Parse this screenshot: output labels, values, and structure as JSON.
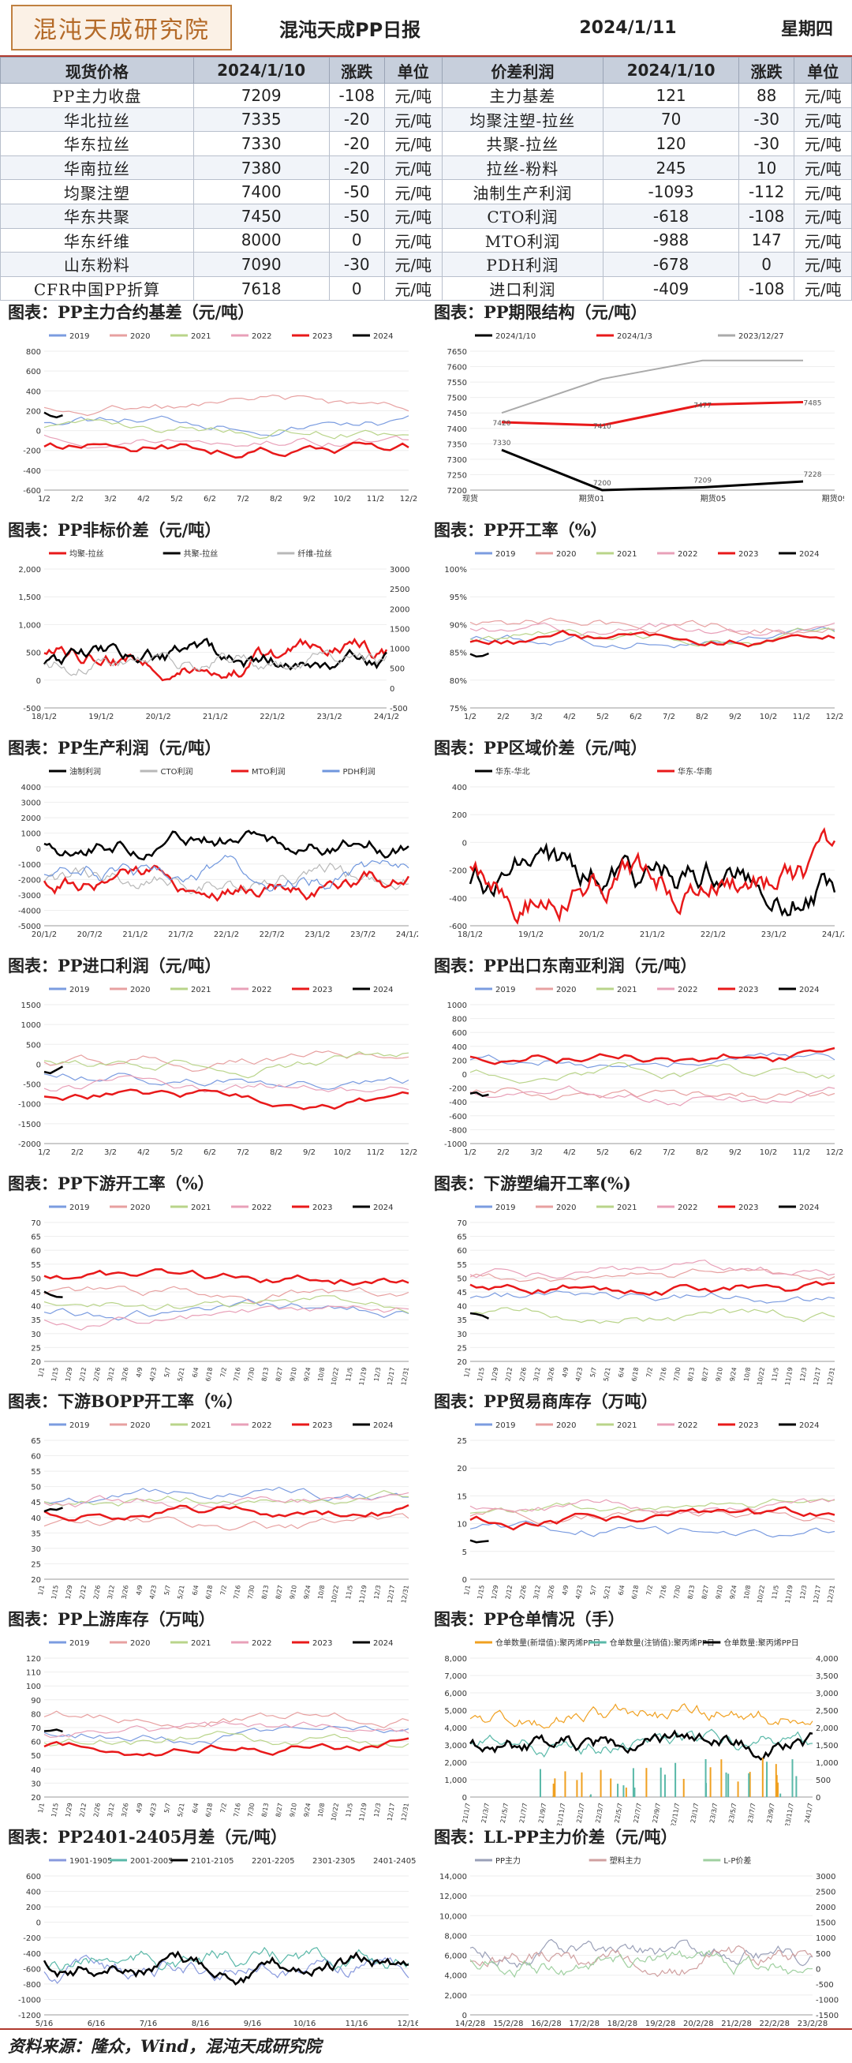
{
  "header": {
    "logo_text": "混沌天成研究院",
    "title": "混沌天成PP日报",
    "date": "2024/1/11",
    "weekday": "星期四"
  },
  "table": {
    "headers": [
      "现货价格",
      "2024/1/10",
      "涨跌",
      "单位",
      "价差利润",
      "2024/1/10",
      "涨跌",
      "单位"
    ],
    "rows": [
      [
        "PP主力收盘",
        "7209",
        "-108",
        "元/吨",
        "主力基差",
        "121",
        "88",
        "元/吨"
      ],
      [
        "华北拉丝",
        "7335",
        "-20",
        "元/吨",
        "均聚注塑-拉丝",
        "70",
        "-30",
        "元/吨"
      ],
      [
        "华东拉丝",
        "7330",
        "-20",
        "元/吨",
        "共聚-拉丝",
        "120",
        "-30",
        "元/吨"
      ],
      [
        "华南拉丝",
        "7380",
        "-20",
        "元/吨",
        "拉丝-粉料",
        "245",
        "10",
        "元/吨"
      ],
      [
        "均聚注塑",
        "7400",
        "-50",
        "元/吨",
        "油制生产利润",
        "-1093",
        "-112",
        "元/吨"
      ],
      [
        "华东共聚",
        "7450",
        "-50",
        "元/吨",
        "CTO利润",
        "-618",
        "-108",
        "元/吨"
      ],
      [
        "华东纤维",
        "8000",
        "0",
        "元/吨",
        "MTO利润",
        "-988",
        "147",
        "元/吨"
      ],
      [
        "山东粉料",
        "7090",
        "-30",
        "元/吨",
        "PDH利润",
        "-678",
        "0",
        "元/吨"
      ],
      [
        "CFR中国PP折算",
        "7618",
        "0",
        "元/吨",
        "进口利润",
        "-409",
        "-108",
        "元/吨"
      ]
    ]
  },
  "colors": {
    "y2019": "#7b9ce0",
    "y2020": "#e7a0a0",
    "y2021": "#b9d48a",
    "y2022": "#e8a0b8",
    "y2023": "#e8191a",
    "y2024": "#000000",
    "cto": "#b8b8b8",
    "pdh": "#6f96dd",
    "teal": "#59b8a8",
    "orange": "#f0a020"
  },
  "charts": [
    {
      "title": "图表：PP主力合约基差（元/吨）",
      "legend": [
        "2019",
        "2020",
        "2021",
        "2022",
        "2023",
        "2024"
      ],
      "yticks": [
        "800",
        "600",
        "400",
        "200",
        "0",
        "-200",
        "-400",
        "-600"
      ],
      "xticks": [
        "1/2",
        "2/2",
        "3/2",
        "4/2",
        "5/2",
        "6/2",
        "7/2",
        "8/2",
        "9/2",
        "10/2",
        "11/2",
        "12/2"
      ]
    },
    {
      "title": "图表：PP期限结构（元/吨）",
      "legend": [
        "2024/1/10",
        "2024/1/3",
        "2023/12/27"
      ],
      "yticks": [
        "7650",
        "7600",
        "7550",
        "7500",
        "7450",
        "7400",
        "7350",
        "7300",
        "7250",
        "7200"
      ],
      "xticks": [
        "现货",
        "期货01",
        "期货05",
        "期货09"
      ],
      "data_labels": [
        "7420",
        "7410",
        "7477",
        "7485",
        "7330",
        "7200",
        "7209",
        "7228"
      ]
    },
    {
      "title": "图表：PP非标价差（元/吨）",
      "legend": [
        "均聚-拉丝",
        "共聚-拉丝",
        "纤维-拉丝"
      ],
      "yticks": [
        "2,000",
        "1,500",
        "1,000",
        "500",
        "0",
        "-500"
      ],
      "yticks_right": [
        "3000",
        "2500",
        "2000",
        "1500",
        "1000",
        "500",
        "0",
        "-500"
      ],
      "xticks": [
        "18/1/2",
        "19/1/2",
        "20/1/2",
        "21/1/2",
        "22/1/2",
        "23/1/2",
        "24/1/2"
      ]
    },
    {
      "title": "图表：PP开工率（%）",
      "legend": [
        "2019",
        "2020",
        "2021",
        "2022",
        "2023",
        "2024"
      ],
      "yticks": [
        "100%",
        "95%",
        "90%",
        "85%",
        "80%",
        "75%"
      ],
      "xticks": [
        "1/2",
        "2/2",
        "3/2",
        "4/2",
        "5/2",
        "6/2",
        "7/2",
        "8/2",
        "9/2",
        "10/2",
        "11/2",
        "12/2"
      ]
    },
    {
      "title": "图表：PP生产利润（元/吨）",
      "legend": [
        "油制利润",
        "CTO利润",
        "MTO利润",
        "PDH利润"
      ],
      "yticks": [
        "4000",
        "3000",
        "2000",
        "1000",
        "0",
        "-1000",
        "-2000",
        "-3000",
        "-4000",
        "-5000"
      ],
      "xticks": [
        "20/1/2",
        "20/7/2",
        "21/1/2",
        "21/7/2",
        "22/1/2",
        "22/7/2",
        "23/1/2",
        "23/7/2",
        "24/1/2"
      ]
    },
    {
      "title": "图表：PP区域价差（元/吨）",
      "legend": [
        "华东-华北",
        "华东-华南"
      ],
      "yticks": [
        "400",
        "200",
        "0",
        "-200",
        "-400",
        "-600"
      ],
      "xticks": [
        "18/1/2",
        "19/1/2",
        "20/1/2",
        "21/1/2",
        "22/1/2",
        "23/1/2",
        "24/1/2"
      ]
    },
    {
      "title": "图表：PP进口利润（元/吨）",
      "legend": [
        "2019",
        "2020",
        "2021",
        "2022",
        "2023",
        "2024"
      ],
      "yticks": [
        "1500",
        "1000",
        "500",
        "0",
        "-500",
        "-1000",
        "-1500",
        "-2000"
      ],
      "xticks": [
        "1/2",
        "2/2",
        "3/2",
        "4/2",
        "5/2",
        "6/2",
        "7/2",
        "8/2",
        "9/2",
        "10/2",
        "11/2",
        "12/2"
      ]
    },
    {
      "title": "图表：PP出口东南亚利润（元/吨）",
      "legend": [
        "2019",
        "2020",
        "2021",
        "2022",
        "2023",
        "2024"
      ],
      "yticks": [
        "1000",
        "800",
        "600",
        "400",
        "200",
        "0",
        "-200",
        "-400",
        "-600",
        "-800",
        "-1000"
      ],
      "xticks": [
        "1/2",
        "2/2",
        "3/2",
        "4/2",
        "5/2",
        "6/2",
        "7/2",
        "8/2",
        "9/2",
        "10/2",
        "11/2",
        "12/2"
      ]
    },
    {
      "title": "图表：PP下游开工率（%）",
      "legend": [
        "2019",
        "2020",
        "2021",
        "2022",
        "2023",
        "2024"
      ],
      "yticks": [
        "70",
        "65",
        "60",
        "55",
        "50",
        "45",
        "40",
        "35",
        "30",
        "25",
        "20"
      ],
      "xticks": [
        "1/1",
        "1/15",
        "1/29",
        "2/12",
        "2/26",
        "3/12",
        "3/26",
        "4/9",
        "4/23",
        "5/7",
        "5/21",
        "6/4",
        "6/18",
        "7/2",
        "7/16",
        "7/30",
        "8/13",
        "8/27",
        "9/10",
        "9/24",
        "10/8",
        "10/22",
        "11/5",
        "11/19",
        "12/3",
        "12/17",
        "12/31"
      ]
    },
    {
      "title": "图表：下游塑编开工率(%)",
      "legend": [
        "2019",
        "2020",
        "2021",
        "2022",
        "2023",
        "2024"
      ],
      "yticks": [
        "70",
        "65",
        "60",
        "55",
        "50",
        "45",
        "40",
        "35",
        "30",
        "25",
        "20"
      ],
      "xticks": [
        "1/1",
        "1/15",
        "1/29",
        "2/12",
        "2/26",
        "3/12",
        "3/26",
        "4/9",
        "4/23",
        "5/7",
        "5/21",
        "6/4",
        "6/18",
        "7/2",
        "7/16",
        "7/30",
        "8/13",
        "8/27",
        "9/10",
        "9/24",
        "10/8",
        "10/22",
        "11/5",
        "11/19",
        "12/3",
        "12/17",
        "12/31"
      ]
    },
    {
      "title": "图表：下游BOPP开工率（%）",
      "legend": [
        "2019",
        "2020",
        "2021",
        "2022",
        "2023",
        "2024"
      ],
      "yticks": [
        "65",
        "60",
        "55",
        "50",
        "45",
        "40",
        "35",
        "30",
        "25",
        "20"
      ],
      "xticks": [
        "1/1",
        "1/15",
        "1/29",
        "2/12",
        "2/26",
        "3/12",
        "3/26",
        "4/9",
        "4/23",
        "5/7",
        "5/21",
        "6/4",
        "6/18",
        "7/2",
        "7/16",
        "7/30",
        "8/13",
        "8/27",
        "9/10",
        "9/24",
        "10/8",
        "10/22",
        "11/5",
        "11/19",
        "12/3",
        "12/17",
        "12/31"
      ]
    },
    {
      "title": "图表：PP贸易商库存（万吨）",
      "legend": [
        "2019",
        "2020",
        "2021",
        "2022",
        "2023",
        "2024"
      ],
      "yticks": [
        "25",
        "20",
        "15",
        "10",
        "5",
        "0"
      ],
      "xticks": [
        "1/1",
        "1/15",
        "1/29",
        "2/12",
        "2/26",
        "3/12",
        "3/26",
        "4/9",
        "4/23",
        "5/7",
        "5/21",
        "6/4",
        "6/18",
        "7/2",
        "7/16",
        "7/30",
        "8/13",
        "8/27",
        "9/10",
        "9/24",
        "10/8",
        "10/22",
        "11/5",
        "11/19",
        "12/3",
        "12/17",
        "12/31"
      ]
    },
    {
      "title": "图表：PP上游库存（万吨）",
      "legend": [
        "2019",
        "2020",
        "2021",
        "2022",
        "2023",
        "2024"
      ],
      "yticks": [
        "120",
        "110",
        "100",
        "90",
        "80",
        "70",
        "60",
        "50",
        "40",
        "30",
        "20"
      ],
      "xticks": [
        "1/1",
        "1/15",
        "1/29",
        "2/12",
        "2/26",
        "3/12",
        "3/26",
        "4/9",
        "4/23",
        "5/7",
        "5/21",
        "6/4",
        "6/18",
        "7/2",
        "7/16",
        "7/30",
        "8/13",
        "8/27",
        "9/10",
        "9/24",
        "10/8",
        "10/22",
        "11/5",
        "11/19",
        "12/3",
        "12/17",
        "12/31"
      ]
    },
    {
      "title": "图表：PP仓单情况（手）",
      "legend": [
        "仓单数量(新增值):聚丙烯PP日",
        "仓单数量(注销值):聚丙烯PP日",
        "仓单数量:聚丙烯PP日"
      ],
      "yticks": [
        "8,000",
        "7,000",
        "6,000",
        "5,000",
        "4,000",
        "3,000",
        "2,000",
        "1,000",
        "0"
      ],
      "yticks_right": [
        "4,000",
        "3,500",
        "3,000",
        "2,500",
        "2,000",
        "1,500",
        "1,000",
        "500",
        "0"
      ],
      "xticks": [
        "21/1/7",
        "21/3/7",
        "21/5/7",
        "21/7/7",
        "21/9/7",
        "21/11/7",
        "22/1/7",
        "22/3/7",
        "22/5/7",
        "22/7/7",
        "22/9/7",
        "22/11/7",
        "23/1/7",
        "23/3/7",
        "23/5/7",
        "23/7/7",
        "23/9/7",
        "23/11/7",
        "24/1/7"
      ]
    },
    {
      "title": "图表：PP2401-2405月差（元/吨）",
      "legend": [
        "1901-1905",
        "2001-2005",
        "2101-2105",
        "2201-2205",
        "2301-2305",
        "2401-2405"
      ],
      "yticks": [
        "600",
        "400",
        "200",
        "0",
        "-200",
        "-400",
        "-600",
        "-800",
        "-1000",
        "-1200"
      ],
      "xticks": [
        "5/16",
        "6/16",
        "7/16",
        "8/16",
        "9/16",
        "10/16",
        "11/16",
        "12/16"
      ]
    },
    {
      "title": "图表：LL-PP主力价差（元/吨）",
      "legend": [
        "PP主力",
        "塑料主力",
        "L-P价差"
      ],
      "yticks": [
        "14,000",
        "12,000",
        "10,000",
        "8,000",
        "6,000",
        "4,000",
        "2,000",
        "0"
      ],
      "yticks_right": [
        "3000",
        "2500",
        "2000",
        "1500",
        "1000",
        "500",
        "0",
        "-500",
        "-1000",
        "-1500"
      ],
      "xticks": [
        "14/2/28",
        "15/2/28",
        "16/2/28",
        "17/2/28",
        "18/2/28",
        "19/2/28",
        "20/2/28",
        "21/2/28",
        "22/2/28",
        "23/2/28"
      ]
    }
  ],
  "footer": "资料来源：隆众，Wind，混沌天成研究院"
}
